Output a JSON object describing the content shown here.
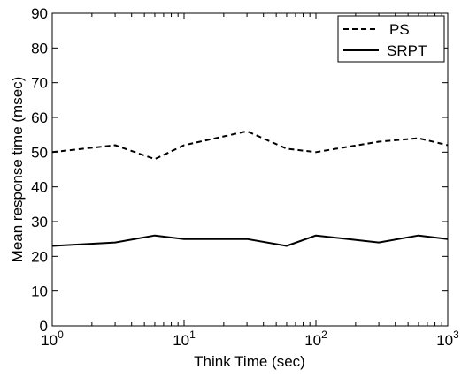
{
  "chart_data": {
    "type": "line",
    "xlabel": "Think Time (sec)",
    "ylabel": "Mean response time (msec)",
    "xscale": "log",
    "xlim": [
      1,
      1000
    ],
    "ylim": [
      0,
      90
    ],
    "grid": false,
    "legend_position": "top-right",
    "x_ticks": [
      {
        "value": 1,
        "base": "10",
        "exp": "0"
      },
      {
        "value": 10,
        "base": "10",
        "exp": "1"
      },
      {
        "value": 100,
        "base": "10",
        "exp": "2"
      },
      {
        "value": 1000,
        "base": "10",
        "exp": "3"
      }
    ],
    "y_ticks": [
      0,
      10,
      20,
      30,
      40,
      50,
      60,
      70,
      80,
      90
    ],
    "series": [
      {
        "name": "PS",
        "style": "dashed",
        "color": "#000000",
        "x": [
          1,
          3,
          6,
          10,
          30,
          60,
          100,
          300,
          600,
          1000
        ],
        "y": [
          50,
          52,
          48,
          52,
          56,
          51,
          50,
          53,
          54,
          52
        ]
      },
      {
        "name": "SRPT",
        "style": "solid",
        "color": "#000000",
        "x": [
          1,
          3,
          6,
          10,
          30,
          60,
          100,
          300,
          600,
          1000
        ],
        "y": [
          23,
          24,
          26,
          25,
          25,
          23,
          26,
          24,
          26,
          25
        ]
      }
    ]
  }
}
